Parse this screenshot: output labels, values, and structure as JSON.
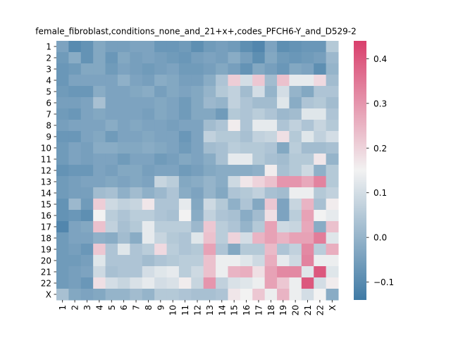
{
  "chart_data": {
    "type": "heatmap",
    "title": "female_fibroblast,conditions_none_and_21+x+,codes_PFCH6-Y_and_D529-2",
    "x_categories": [
      "1",
      "2",
      "3",
      "4",
      "5",
      "6",
      "7",
      "8",
      "9",
      "10",
      "11",
      "12",
      "13",
      "14",
      "15",
      "16",
      "17",
      "18",
      "19",
      "20",
      "21",
      "22",
      "X"
    ],
    "y_categories": [
      "1",
      "2",
      "3",
      "4",
      "5",
      "6",
      "7",
      "8",
      "9",
      "10",
      "11",
      "12",
      "13",
      "14",
      "15",
      "16",
      "17",
      "18",
      "19",
      "20",
      "21",
      "22",
      "X"
    ],
    "colorbar": {
      "vmin": -0.14,
      "vmax": 0.44,
      "ticks": [
        -0.1,
        0.0,
        0.1,
        0.2,
        0.3,
        0.4
      ],
      "tick_labels": [
        "−0.1",
        "0.0",
        "0.1",
        "0.2",
        "0.3",
        "0.4"
      ],
      "colors": {
        "low": "#3f7aa5",
        "mid": "#f2f2f2",
        "high": "#d93f6c"
      }
    },
    "values": [
      [
        -0.04,
        -0.1,
        -0.08,
        -0.03,
        -0.05,
        -0.05,
        -0.04,
        -0.04,
        -0.07,
        -0.07,
        -0.06,
        -0.09,
        -0.06,
        -0.05,
        -0.06,
        -0.09,
        -0.11,
        -0.04,
        -0.09,
        -0.08,
        -0.07,
        -0.07,
        0.05
      ],
      [
        -0.06,
        -0.02,
        -0.08,
        -0.03,
        -0.07,
        -0.03,
        -0.05,
        -0.04,
        -0.05,
        -0.06,
        -0.07,
        -0.05,
        -0.04,
        -0.05,
        -0.02,
        -0.05,
        -0.09,
        -0.03,
        -0.06,
        -0.07,
        -0.06,
        -0.05,
        0.01
      ],
      [
        -0.07,
        -0.06,
        -0.03,
        -0.03,
        -0.06,
        -0.04,
        -0.05,
        -0.06,
        -0.05,
        -0.04,
        -0.06,
        -0.06,
        -0.05,
        -0.03,
        -0.05,
        -0.08,
        -0.03,
        -0.05,
        -0.07,
        -0.03,
        -0.04,
        -0.09,
        0.0
      ],
      [
        -0.07,
        -0.04,
        -0.04,
        -0.04,
        -0.04,
        -0.01,
        -0.04,
        -0.05,
        -0.02,
        -0.03,
        -0.05,
        -0.05,
        -0.02,
        0.04,
        0.21,
        0.1,
        0.22,
        0.02,
        0.23,
        0.13,
        0.13,
        0.19,
        0.02
      ],
      [
        -0.06,
        -0.07,
        -0.07,
        -0.02,
        -0.04,
        -0.04,
        -0.03,
        -0.02,
        -0.05,
        -0.03,
        -0.04,
        -0.03,
        0.0,
        0.05,
        0.07,
        0.02,
        0.1,
        0.0,
        0.1,
        0.0,
        -0.03,
        0.04,
        0.04
      ],
      [
        -0.05,
        -0.05,
        -0.04,
        0.03,
        -0.04,
        -0.04,
        -0.04,
        -0.04,
        -0.03,
        -0.04,
        -0.06,
        -0.03,
        0.01,
        0.0,
        0.07,
        0.04,
        0.02,
        0.02,
        0.12,
        -0.02,
        0.04,
        0.05,
        0.02
      ],
      [
        -0.06,
        -0.07,
        -0.04,
        -0.03,
        -0.04,
        -0.04,
        -0.04,
        -0.05,
        -0.03,
        -0.04,
        -0.06,
        -0.03,
        -0.03,
        -0.06,
        0.05,
        0.04,
        0.06,
        0.04,
        0.01,
        0.02,
        0.12,
        0.12,
        0.04
      ],
      [
        -0.05,
        -0.04,
        -0.04,
        -0.04,
        -0.02,
        -0.04,
        -0.03,
        -0.04,
        -0.04,
        -0.05,
        -0.04,
        -0.04,
        0.02,
        0.04,
        0.16,
        0.04,
        0.13,
        0.13,
        0.04,
        0.07,
        0.04,
        0.08,
        0.05
      ],
      [
        -0.07,
        -0.07,
        -0.04,
        -0.03,
        -0.06,
        -0.04,
        -0.04,
        -0.03,
        -0.04,
        -0.04,
        -0.07,
        -0.04,
        0.07,
        0.05,
        0.05,
        0.03,
        0.07,
        0.08,
        0.18,
        0.05,
        0.12,
        0.07,
        0.1
      ],
      [
        -0.06,
        -0.04,
        -0.05,
        -0.02,
        -0.02,
        -0.03,
        -0.03,
        -0.02,
        -0.03,
        -0.04,
        -0.06,
        -0.04,
        0.02,
        0.03,
        0.06,
        0.05,
        0.05,
        0.04,
        -0.03,
        0.06,
        0.02,
        0.02,
        0.03
      ],
      [
        -0.06,
        -0.04,
        -0.05,
        -0.04,
        -0.04,
        -0.06,
        -0.04,
        -0.04,
        -0.06,
        -0.05,
        -0.03,
        -0.04,
        -0.02,
        0.03,
        0.13,
        0.13,
        0.05,
        0.03,
        0.02,
        0.05,
        0.05,
        0.17,
        0.0
      ],
      [
        -0.08,
        -0.07,
        -0.07,
        -0.04,
        -0.05,
        -0.03,
        -0.03,
        -0.05,
        -0.04,
        -0.04,
        -0.06,
        -0.05,
        -0.03,
        -0.02,
        -0.02,
        -0.02,
        -0.01,
        0.16,
        0.03,
        0.05,
        0.09,
        -0.01,
        0.05
      ],
      [
        -0.06,
        -0.05,
        -0.04,
        -0.04,
        -0.03,
        -0.04,
        -0.03,
        -0.04,
        0.08,
        0.06,
        -0.03,
        -0.02,
        0.0,
        -0.02,
        0.09,
        0.17,
        0.2,
        0.23,
        0.3,
        0.3,
        0.27,
        0.33,
        0.05
      ],
      [
        -0.06,
        -0.05,
        -0.05,
        0.02,
        0.03,
        -0.01,
        0.02,
        -0.01,
        0.01,
        0.04,
        -0.02,
        -0.04,
        0.0,
        -0.03,
        0.04,
        0.05,
        0.07,
        0.03,
        0.02,
        0.14,
        0.14,
        0.05,
        0.07
      ],
      [
        -0.08,
        0.01,
        -0.06,
        0.21,
        0.09,
        0.07,
        0.08,
        0.17,
        0.04,
        0.04,
        0.13,
        -0.03,
        0.09,
        0.05,
        -0.01,
        0.04,
        -0.03,
        0.22,
        -0.04,
        0.08,
        0.25,
        0.03,
        0.16
      ],
      [
        -0.08,
        -0.07,
        -0.09,
        0.15,
        0.06,
        0.04,
        0.06,
        0.06,
        0.04,
        0.03,
        0.15,
        -0.02,
        0.07,
        0.04,
        0.03,
        -0.02,
        0.02,
        0.18,
        -0.04,
        0.06,
        0.28,
        0.15,
        0.13
      ],
      [
        -0.11,
        -0.04,
        -0.03,
        0.23,
        0.07,
        0.03,
        0.05,
        0.13,
        0.06,
        0.06,
        0.06,
        0.01,
        0.22,
        0.06,
        0.04,
        0.0,
        0.05,
        0.28,
        0.09,
        0.08,
        0.27,
        -0.02,
        0.23
      ],
      [
        -0.06,
        -0.04,
        -0.04,
        -0.01,
        -0.02,
        0.02,
        -0.02,
        0.13,
        0.08,
        0.05,
        0.04,
        0.12,
        0.23,
        0.06,
        0.2,
        0.1,
        0.25,
        0.28,
        0.25,
        0.28,
        0.28,
        0.34,
        0.12
      ],
      [
        -0.06,
        -0.05,
        -0.07,
        0.22,
        0.04,
        0.12,
        0.04,
        0.06,
        0.19,
        0.06,
        0.04,
        0.05,
        0.28,
        0.04,
        -0.03,
        0.05,
        0.05,
        0.24,
        0.04,
        0.07,
        0.32,
        0.06,
        0.26
      ],
      [
        -0.06,
        -0.06,
        -0.05,
        0.12,
        0.04,
        0.04,
        0.04,
        0.02,
        0.04,
        0.05,
        0.06,
        0.06,
        0.23,
        0.14,
        0.14,
        0.12,
        0.09,
        0.26,
        0.13,
        0.09,
        0.33,
        0.14,
        0.14
      ],
      [
        -0.06,
        -0.05,
        -0.04,
        0.09,
        0.03,
        0.04,
        0.04,
        0.1,
        0.12,
        0.13,
        0.06,
        0.09,
        0.23,
        0.14,
        0.25,
        0.26,
        0.18,
        0.28,
        0.32,
        0.32,
        0.12,
        0.4,
        0.12
      ],
      [
        -0.06,
        -0.05,
        -0.07,
        0.18,
        0.1,
        0.08,
        0.11,
        0.13,
        0.1,
        0.11,
        0.16,
        0.08,
        0.3,
        0.07,
        0.11,
        0.12,
        0.14,
        0.28,
        0.22,
        0.14,
        0.4,
        0.1,
        0.16
      ],
      [
        0.03,
        -0.03,
        -0.04,
        -0.03,
        0.0,
        0.0,
        0.02,
        0.0,
        0.05,
        0.05,
        0.04,
        0.03,
        0.03,
        0.04,
        0.17,
        0.15,
        0.22,
        0.14,
        0.25,
        0.14,
        0.1,
        0.15,
        -0.02
      ]
    ]
  }
}
